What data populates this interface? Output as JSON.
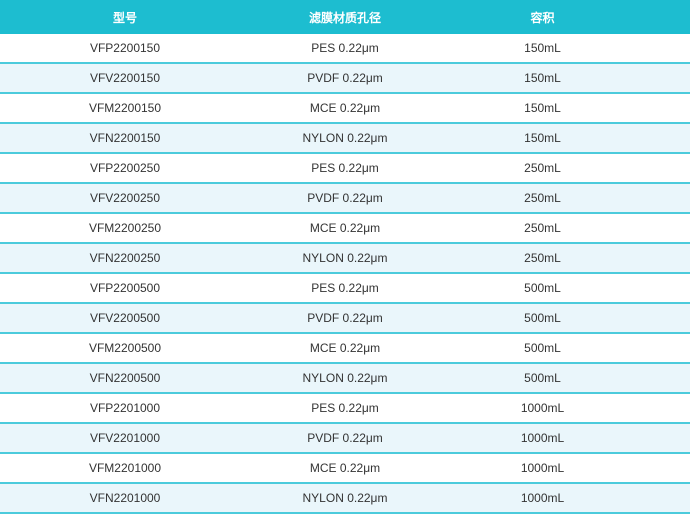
{
  "colors": {
    "header": "#1dbdd0",
    "alt_row": "#eaf6fb",
    "border": "#4ccbdc"
  },
  "headers": [
    "型号",
    "滤膜材质孔径",
    "容积"
  ],
  "rows": [
    [
      "VFP2200150",
      "PES 0.22μm",
      "150mL"
    ],
    [
      "VFV2200150",
      "PVDF 0.22μm",
      "150mL"
    ],
    [
      "VFM2200150",
      "MCE 0.22μm",
      "150mL"
    ],
    [
      "VFN2200150",
      "NYLON 0.22μm",
      "150mL"
    ],
    [
      "VFP2200250",
      "PES 0.22μm",
      "250mL"
    ],
    [
      "VFV2200250",
      "PVDF 0.22μm",
      "250mL"
    ],
    [
      "VFM2200250",
      "MCE 0.22μm",
      "250mL"
    ],
    [
      "VFN2200250",
      "NYLON 0.22μm",
      "250mL"
    ],
    [
      "VFP2200500",
      "PES 0.22μm",
      "500mL"
    ],
    [
      "VFV2200500",
      "PVDF 0.22μm",
      "500mL"
    ],
    [
      "VFM2200500",
      "MCE 0.22μm",
      "500mL"
    ],
    [
      "VFN2200500",
      "NYLON 0.22μm",
      "500mL"
    ],
    [
      "VFP2201000",
      "PES 0.22μm",
      "1000mL"
    ],
    [
      "VFV2201000",
      "PVDF 0.22μm",
      "1000mL"
    ],
    [
      "VFM2201000",
      "MCE 0.22μm",
      "1000mL"
    ],
    [
      "VFN2201000",
      "NYLON 0.22μm",
      "1000mL"
    ]
  ]
}
